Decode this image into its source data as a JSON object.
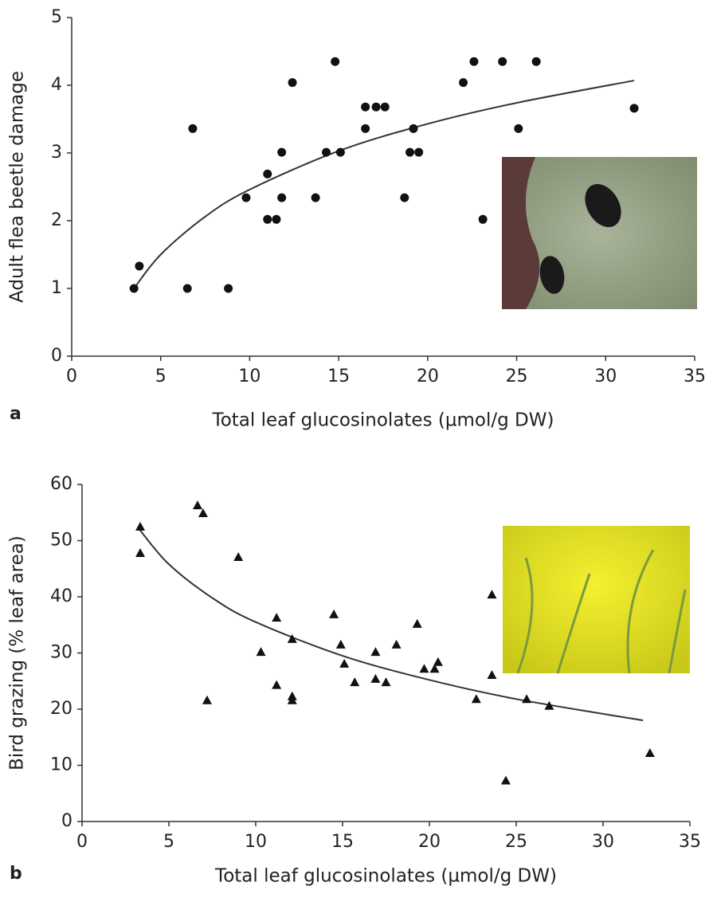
{
  "chart_data": [
    {
      "type": "scatter",
      "panel_label": "a",
      "x_label": "Total leaf glucosinolates (µmol/g DW)",
      "y_label": "Adult flea beetle damage",
      "marker": "circle",
      "color": "#111111",
      "x": [
        3.5,
        3.8,
        6.5,
        6.8,
        8.8,
        9.8,
        11.0,
        11.0,
        11.5,
        11.8,
        11.8,
        12.4,
        13.7,
        14.3,
        14.8,
        15.1,
        16.5,
        16.5,
        17.1,
        17.6,
        18.7,
        19.0,
        19.2,
        19.5,
        22.0,
        22.6,
        23.1,
        24.2,
        25.1,
        26.1,
        31.6
      ],
      "values": [
        1.0,
        1.33,
        1.0,
        3.36,
        1.0,
        2.34,
        2.69,
        2.02,
        2.02,
        3.01,
        2.34,
        4.04,
        2.34,
        3.01,
        4.35,
        3.01,
        3.36,
        3.68,
        3.68,
        3.68,
        2.34,
        3.01,
        3.36,
        3.01,
        4.04,
        4.35,
        2.02,
        4.35,
        3.36,
        4.35,
        3.66
      ],
      "trend": {
        "x": [
          3.5,
          5,
          7.5,
          10,
          15,
          20,
          25,
          31.6
        ],
        "values": [
          1.0,
          1.5,
          2.06,
          2.46,
          3.03,
          3.43,
          3.74,
          4.07
        ]
      },
      "xlim": [
        0,
        35
      ],
      "xticks": [
        0,
        5,
        10,
        15,
        20,
        25,
        30,
        35
      ],
      "ylim": [
        0,
        5
      ],
      "yticks": [
        0,
        1,
        2,
        3,
        4,
        5
      ]
    },
    {
      "type": "scatter",
      "panel_label": "b",
      "x_label": "Total leaf glucosinolates (µmol/g DW)",
      "y_label": "Bird grazing (% leaf area)",
      "marker": "triangle",
      "color": "#111111",
      "x": [
        3.35,
        3.35,
        6.65,
        6.97,
        7.2,
        9.0,
        10.3,
        11.2,
        11.2,
        12.1,
        12.1,
        12.1,
        14.5,
        14.9,
        15.1,
        15.7,
        16.9,
        16.9,
        17.5,
        18.1,
        19.3,
        19.7,
        20.3,
        20.5,
        22.7,
        23.6,
        23.6,
        24.4,
        25.6,
        26.9,
        32.7
      ],
      "values": [
        52.5,
        47.8,
        56.3,
        54.9,
        21.6,
        47.1,
        30.2,
        36.3,
        24.3,
        32.5,
        22.3,
        21.6,
        36.9,
        31.5,
        28.1,
        24.8,
        30.2,
        25.4,
        24.8,
        31.5,
        35.2,
        27.2,
        27.2,
        28.4,
        21.8,
        40.4,
        26.1,
        7.3,
        21.8,
        20.6,
        12.2
      ],
      "trend": {
        "x": [
          3.3,
          5,
          7.5,
          10,
          15,
          20,
          25,
          32.3
        ],
        "values": [
          52.0,
          45.8,
          39.8,
          35.5,
          29.5,
          25.2,
          21.8,
          18.0
        ]
      },
      "xlim": [
        0,
        35
      ],
      "xticks": [
        0,
        5,
        10,
        15,
        20,
        25,
        30,
        35
      ],
      "ylim": [
        0,
        60
      ],
      "yticks": [
        0,
        10,
        20,
        30,
        40,
        50,
        60
      ]
    }
  ]
}
